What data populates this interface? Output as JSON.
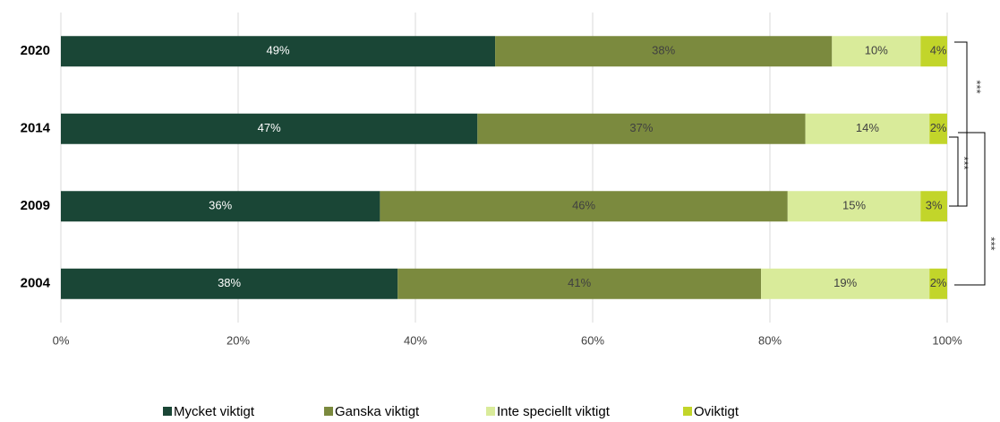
{
  "chart_data": {
    "type": "stacked-barh",
    "categories": [
      "2020",
      "2014",
      "2009",
      "2004"
    ],
    "series": [
      {
        "name": "Mycket viktigt",
        "color": "#1a4636",
        "values": [
          49,
          47,
          36,
          38
        ],
        "value_labels": [
          "49%",
          "47%",
          "36%",
          "38%"
        ]
      },
      {
        "name": "Ganska viktigt",
        "color": "#7b8a3e",
        "values": [
          38,
          37,
          46,
          41
        ],
        "value_labels": [
          "38%",
          "37%",
          "46%",
          "41%"
        ]
      },
      {
        "name": "Inte speciellt viktigt",
        "color": "#d9eb9a",
        "values": [
          10,
          14,
          15,
          19
        ],
        "value_labels": [
          "10%",
          "14%",
          "15%",
          "19%"
        ]
      },
      {
        "name": "Oviktigt",
        "color": "#c2d52a",
        "values": [
          4,
          2,
          3,
          2
        ],
        "value_labels": [
          "4%",
          "2%",
          "3%",
          "2%"
        ]
      }
    ],
    "xlim": [
      0,
      100
    ],
    "xticks": [
      {
        "value": 0,
        "label": "0%"
      },
      {
        "value": 20,
        "label": "20%"
      },
      {
        "value": 40,
        "label": "40%"
      },
      {
        "value": 60,
        "label": "60%"
      },
      {
        "value": 80,
        "label": "80%"
      },
      {
        "value": 100,
        "label": "100%"
      }
    ],
    "grid": true,
    "legend": "bottom",
    "annotations": [
      "***",
      "***",
      "***"
    ]
  }
}
